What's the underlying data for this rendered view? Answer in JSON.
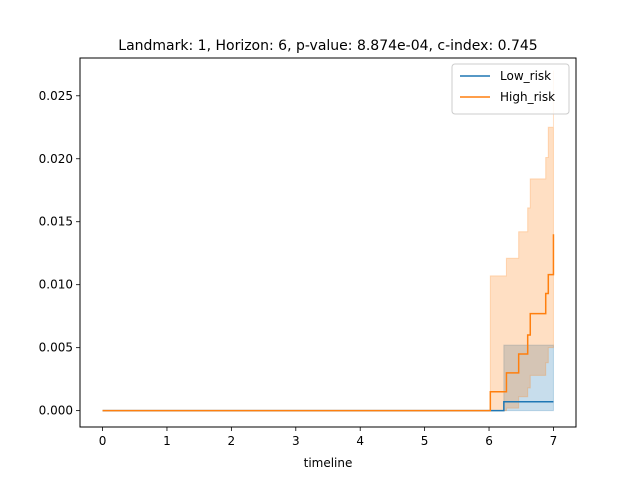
{
  "chart_data": {
    "type": "line",
    "title": "Landmark: 1, Horizon: 6, p-value: 8.874e-04, c-index: 0.745",
    "xlabel": "timeline",
    "ylabel": "",
    "xlim": [
      -0.35,
      7.35
    ],
    "ylim": [
      -0.0013,
      0.028
    ],
    "xticks": [
      0,
      1,
      2,
      3,
      4,
      5,
      6,
      7
    ],
    "yticks": [
      0.0,
      0.005,
      0.01,
      0.015,
      0.02,
      0.025
    ],
    "xtick_labels": [
      "0",
      "1",
      "2",
      "3",
      "4",
      "5",
      "6",
      "7"
    ],
    "ytick_labels": [
      "0.000",
      "0.005",
      "0.010",
      "0.015",
      "0.020",
      "0.025"
    ],
    "grid": false,
    "legend_position": "top-right",
    "series": [
      {
        "name": "Low_risk",
        "color": "#1f77b4",
        "steps": [
          [
            0,
            0
          ],
          [
            6.23,
            0.0007
          ],
          [
            7.0,
            0.0007
          ]
        ],
        "ci_lower": [
          [
            0,
            0
          ],
          [
            6.23,
            0
          ],
          [
            7.0,
            0
          ]
        ],
        "ci_upper": [
          [
            0,
            0
          ],
          [
            6.23,
            0.0052
          ],
          [
            7.0,
            0.0052
          ]
        ]
      },
      {
        "name": "High_risk",
        "color": "#ff7f0e",
        "steps": [
          [
            0,
            0
          ],
          [
            6.02,
            0.0015
          ],
          [
            6.27,
            0.003
          ],
          [
            6.46,
            0.0045
          ],
          [
            6.6,
            0.006
          ],
          [
            6.64,
            0.0077
          ],
          [
            6.88,
            0.0093
          ],
          [
            6.92,
            0.0108
          ],
          [
            7.0,
            0.014
          ]
        ],
        "ci_lower": [
          [
            0,
            0
          ],
          [
            6.02,
            0.0
          ],
          [
            6.27,
            0.0002
          ],
          [
            6.46,
            0.0011
          ],
          [
            6.6,
            0.0018
          ],
          [
            6.64,
            0.0028
          ],
          [
            6.88,
            0.0038
          ],
          [
            6.92,
            0.005
          ],
          [
            7.0,
            0.0072
          ]
        ],
        "ci_upper": [
          [
            0,
            0
          ],
          [
            6.02,
            0.0107
          ],
          [
            6.27,
            0.0121
          ],
          [
            6.46,
            0.0142
          ],
          [
            6.6,
            0.0161
          ],
          [
            6.64,
            0.0184
          ],
          [
            6.88,
            0.0201
          ],
          [
            6.92,
            0.0225
          ],
          [
            7.0,
            0.027
          ]
        ]
      }
    ]
  }
}
